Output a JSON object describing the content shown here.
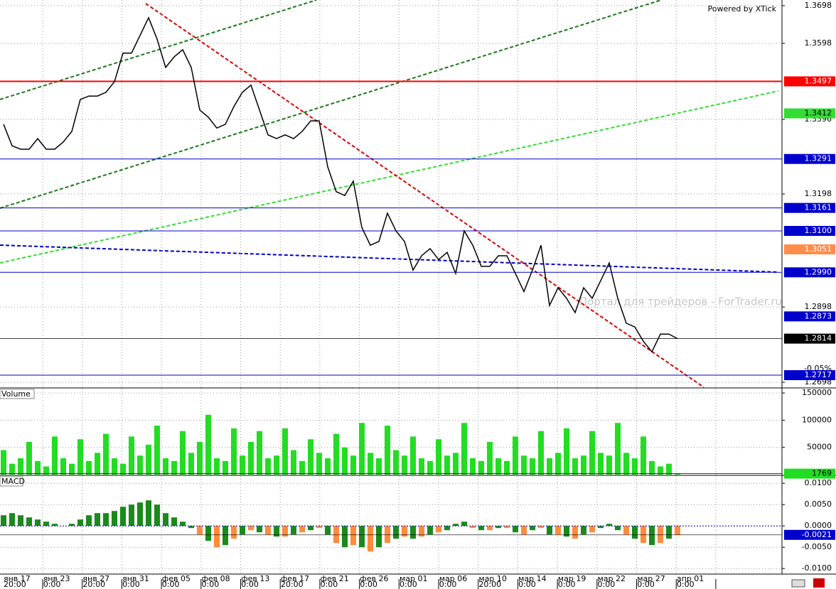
{
  "chart_data": [
    {
      "type": "line",
      "credit": "Powered by XTick",
      "watermark": "Портал для трейдеров - ForTrader.ru",
      "change_label": "-0.05%",
      "color": "#000000",
      "last_box_color": "#000000",
      "last_text_color": "#ffffff",
      "values": [
        1.3383,
        1.3326,
        1.3317,
        1.3317,
        1.3345,
        1.3317,
        1.3317,
        1.3336,
        1.3364,
        1.3449,
        1.3458,
        1.3458,
        1.3468,
        1.3496,
        1.3572,
        1.3572,
        1.3619,
        1.3666,
        1.3609,
        1.3534,
        1.3562,
        1.3581,
        1.3534,
        1.3421,
        1.3402,
        1.3373,
        1.3383,
        1.343,
        1.3468,
        1.3487,
        1.3421,
        1.3355,
        1.3345,
        1.3355,
        1.3345,
        1.3364,
        1.3392,
        1.3392,
        1.327,
        1.3204,
        1.3194,
        1.3232,
        1.3109,
        1.3062,
        1.3072,
        1.3147,
        1.31,
        1.3072,
        1.2996,
        1.3034,
        1.3053,
        1.3024,
        1.3043,
        1.2987,
        1.31,
        1.3062,
        1.3006,
        1.3006,
        1.3034,
        1.3034,
        1.2987,
        1.2939,
        1.2996,
        1.3062,
        1.2902,
        1.2949,
        1.2921,
        1.2883,
        1.2949,
        1.2921,
        1.2968,
        1.3015,
        1.2921,
        1.2855,
        1.2845,
        1.2807,
        1.2779,
        1.2826,
        1.2826,
        1.2814
      ],
      "ylim": [
        1.2685,
        1.3713
      ],
      "yticks": [
        1.3698,
        1.3598,
        1.3396,
        1.3198,
        1.2898,
        1.2698
      ],
      "grid": true,
      "levels": [
        {
          "value": 1.3497,
          "color": "#ff0000",
          "text_color": "#ffffff",
          "line": true
        },
        {
          "value": 1.3412,
          "color": "#33dd33",
          "text_color": "#000000",
          "line": false
        },
        {
          "value": 1.3291,
          "color": "#0000cc",
          "text_color": "#ffffff",
          "line": true
        },
        {
          "value": 1.3161,
          "color": "#0000cc",
          "text_color": "#ffffff",
          "line": true
        },
        {
          "value": 1.31,
          "label": "1.3100",
          "color": "#0000cc",
          "text_color": "#ffffff",
          "line": true
        },
        {
          "value": 1.3051,
          "color": "#ff8c4a",
          "text_color": "#ffffff",
          "line": false
        },
        {
          "value": 1.299,
          "label": "1.2990",
          "color": "#0000cc",
          "text_color": "#ffffff",
          "line": true
        },
        {
          "value": 1.2873,
          "color": "#0000cc",
          "text_color": "#ffffff",
          "line": false
        },
        {
          "value": 1.2717,
          "color": "#0000cc",
          "text_color": "#ffffff",
          "line": true
        }
      ]
    },
    {
      "type": "bar",
      "title": "Volume",
      "color": "#22dd22",
      "last_box_color": "#22dd22",
      "last_text_color": "#000000",
      "values": [
        45000,
        20000,
        30000,
        60000,
        25000,
        15000,
        70000,
        30000,
        20000,
        65000,
        25000,
        40000,
        75000,
        30000,
        20000,
        70000,
        35000,
        55000,
        90000,
        30000,
        25000,
        80000,
        40000,
        60000,
        110000,
        30000,
        25000,
        85000,
        35000,
        60000,
        80000,
        30000,
        35000,
        85000,
        45000,
        25000,
        65000,
        40000,
        30000,
        75000,
        50000,
        35000,
        95000,
        40000,
        30000,
        90000,
        45000,
        35000,
        70000,
        30000,
        25000,
        65000,
        35000,
        40000,
        95000,
        30000,
        25000,
        60000,
        30000,
        25000,
        70000,
        35000,
        30000,
        80000,
        30000,
        40000,
        85000,
        30000,
        35000,
        80000,
        40000,
        35000,
        95000,
        40000,
        30000,
        70000,
        25000,
        15000,
        20000,
        1769
      ],
      "ylim": [
        0,
        158000
      ],
      "yticks": [
        150000,
        100000,
        50000
      ],
      "grid": true
    },
    {
      "type": "bar",
      "title": "MACD",
      "color": "#1a8a1a",
      "negative_color": "#ff8c3a",
      "last_box_color": "#0000cc",
      "last_text_color": "#ffffff",
      "values": [
        0.0025,
        0.003,
        0.0025,
        0.002,
        0.0015,
        0.001,
        0.0005,
        0.0,
        0.0005,
        0.0015,
        0.0025,
        0.003,
        0.003,
        0.0035,
        0.0045,
        0.005,
        0.0055,
        0.006,
        0.005,
        0.003,
        0.002,
        0.001,
        -0.0005,
        -0.002,
        -0.0035,
        -0.005,
        -0.0045,
        -0.003,
        -0.002,
        -0.001,
        -0.0015,
        -0.002,
        -0.0025,
        -0.0025,
        -0.002,
        -0.0015,
        -0.001,
        -0.0005,
        -0.002,
        -0.004,
        -0.005,
        -0.0045,
        -0.005,
        -0.006,
        -0.005,
        -0.004,
        -0.003,
        -0.0025,
        -0.003,
        -0.0025,
        -0.002,
        -0.0015,
        -0.001,
        0.0005,
        0.001,
        -0.0005,
        -0.001,
        -0.001,
        -0.0005,
        -0.0005,
        -0.0015,
        -0.002,
        -0.001,
        -0.0005,
        -0.002,
        -0.002,
        -0.0025,
        -0.003,
        -0.002,
        -0.0015,
        -0.0005,
        0.0005,
        -0.001,
        -0.002,
        -0.003,
        -0.004,
        -0.0045,
        -0.004,
        -0.003,
        -0.0021
      ],
      "ylim": [
        -0.0113,
        0.0117
      ],
      "yticks": [
        {
          "value": 0.01,
          "label": "0.0100"
        },
        {
          "value": 0.005,
          "label": "0.0050"
        },
        {
          "value": 0,
          "label": "0.0000"
        },
        {
          "value": -0.005,
          "label": "-0.0050"
        },
        {
          "value": -0.01,
          "label": "-0.0100"
        }
      ],
      "grid": true
    }
  ],
  "time_axis": {
    "dates": [
      "янв 17",
      "янв 23",
      "янв 27",
      "янв 31",
      "фев 05",
      "фев 08",
      "фев 13",
      "фев 17",
      "фев 21",
      "фев 26",
      "мар 01",
      "мар 06",
      "мар 10",
      "мар 14",
      "мар 19",
      "мар 22",
      "мар 27",
      "апр 01"
    ],
    "times": [
      "20:00",
      "0:00",
      "20:00",
      "0:00",
      "0:00",
      "0:00",
      "0:00",
      "20:00",
      "0:00",
      "0:00",
      "0:00",
      "0:00",
      "20:00",
      "0:00",
      "0:00",
      "0:00",
      "0:00",
      "0:00"
    ]
  }
}
